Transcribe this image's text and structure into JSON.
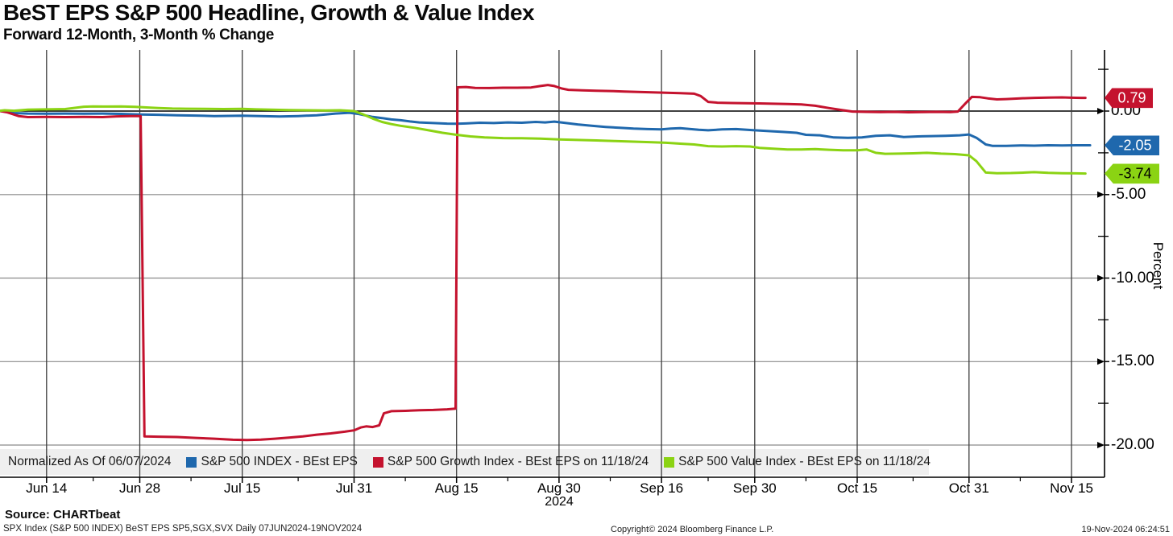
{
  "header": {
    "title": "BeST EPS S&P 500 Headline, Growth & Value Index",
    "subtitle": "Forward 12-Month, 3-Month % Change"
  },
  "chart_data": {
    "type": "line",
    "title": "BeST EPS S&P 500 Headline, Growth & Value Index",
    "subtitle": "Forward 12-Month, 3-Month % Change",
    "ylabel": "Percent",
    "legend_note": "Normalized As Of 06/07/2024",
    "x_axis": {
      "unit": "trading days since 07JUN2024",
      "year": "2024",
      "min_bd": 0,
      "max_bd": 118.5,
      "major_ticks": [
        {
          "bd": 5,
          "label": "Jun 14"
        },
        {
          "bd": 15,
          "label": "Jun 28"
        },
        {
          "bd": 26,
          "label": "Jul 15"
        },
        {
          "bd": 38,
          "label": "Jul 31"
        },
        {
          "bd": 49,
          "label": "Aug 15"
        },
        {
          "bd": 60,
          "label": "Aug 30"
        },
        {
          "bd": 71,
          "label": "Sep 16"
        },
        {
          "bd": 81,
          "label": "Sep 30"
        },
        {
          "bd": 92,
          "label": "Oct 15"
        },
        {
          "bd": 104,
          "label": "Oct 31"
        },
        {
          "bd": 115,
          "label": "Nov 15"
        }
      ]
    },
    "y_axis": {
      "range_top": 3.66,
      "range_bottom": -21.9,
      "major_ticks": [
        {
          "value": 0,
          "label": "0.00"
        },
        {
          "value": -5,
          "label": "-5.00"
        },
        {
          "value": -10,
          "label": "-10.00"
        },
        {
          "value": -15,
          "label": "-15.00"
        },
        {
          "value": -20,
          "label": "-20.00"
        }
      ],
      "minor_ticks": [
        2.5,
        -2.5,
        -7.5,
        -12.5,
        -17.5
      ],
      "grid": true
    },
    "style": {
      "zero_line_color": "#000000",
      "h_grid_color": "#8a8a8a",
      "v_grid_color": "#3c3c3c",
      "axis_color": "#000000",
      "legend_bg": "#efefef"
    },
    "series": [
      {
        "name": "S&P 500 INDEX - BEst EPS",
        "color": "#1f68ad",
        "last_value": -2.05,
        "last_label": "-2.05",
        "tag_text_color": "#ffffff",
        "points": [
          [
            0,
            0
          ],
          [
            0.5,
            -0.02
          ],
          [
            1.5,
            -0.12
          ],
          [
            3,
            -0.15
          ],
          [
            5,
            -0.16
          ],
          [
            7,
            -0.15
          ],
          [
            9,
            -0.16
          ],
          [
            11,
            -0.15
          ],
          [
            13,
            -0.17
          ],
          [
            15,
            -0.2
          ],
          [
            17,
            -0.22
          ],
          [
            19,
            -0.25
          ],
          [
            21,
            -0.27
          ],
          [
            23,
            -0.3
          ],
          [
            26,
            -0.28
          ],
          [
            28,
            -0.3
          ],
          [
            30,
            -0.33
          ],
          [
            32,
            -0.3
          ],
          [
            34,
            -0.25
          ],
          [
            36,
            -0.15
          ],
          [
            37.5,
            -0.1
          ],
          [
            38.5,
            -0.18
          ],
          [
            40,
            -0.35
          ],
          [
            41,
            -0.42
          ],
          [
            42,
            -0.5
          ],
          [
            43,
            -0.55
          ],
          [
            44,
            -0.62
          ],
          [
            45,
            -0.68
          ],
          [
            46.5,
            -0.72
          ],
          [
            48,
            -0.75
          ],
          [
            49,
            -0.76
          ],
          [
            50,
            -0.74
          ],
          [
            51.5,
            -0.7
          ],
          [
            53,
            -0.72
          ],
          [
            54.5,
            -0.68
          ],
          [
            56,
            -0.7
          ],
          [
            57.5,
            -0.65
          ],
          [
            58.5,
            -0.68
          ],
          [
            59.5,
            -0.63
          ],
          [
            60.5,
            -0.7
          ],
          [
            62,
            -0.8
          ],
          [
            63.5,
            -0.88
          ],
          [
            65,
            -0.95
          ],
          [
            66.5,
            -1.0
          ],
          [
            68,
            -1.05
          ],
          [
            69.5,
            -1.08
          ],
          [
            71,
            -1.1
          ],
          [
            72,
            -1.05
          ],
          [
            73,
            -1.02
          ],
          [
            74,
            -1.07
          ],
          [
            75,
            -1.12
          ],
          [
            76,
            -1.15
          ],
          [
            77.5,
            -1.1
          ],
          [
            79,
            -1.08
          ],
          [
            81,
            -1.15
          ],
          [
            82.5,
            -1.2
          ],
          [
            84,
            -1.25
          ],
          [
            85.5,
            -1.3
          ],
          [
            86.5,
            -1.42
          ],
          [
            88,
            -1.45
          ],
          [
            89.5,
            -1.58
          ],
          [
            91,
            -1.6
          ],
          [
            92.5,
            -1.58
          ],
          [
            94,
            -1.48
          ],
          [
            95.5,
            -1.45
          ],
          [
            97,
            -1.55
          ],
          [
            98.5,
            -1.52
          ],
          [
            100,
            -1.5
          ],
          [
            101.5,
            -1.48
          ],
          [
            103,
            -1.45
          ],
          [
            104,
            -1.4
          ],
          [
            104.8,
            -1.6
          ],
          [
            105.8,
            -2.0
          ],
          [
            106.5,
            -2.08
          ],
          [
            108,
            -2.08
          ],
          [
            109.5,
            -2.06
          ],
          [
            111,
            -2.07
          ],
          [
            112.5,
            -2.05
          ],
          [
            114,
            -2.06
          ],
          [
            115.5,
            -2.05
          ],
          [
            117,
            -2.05
          ]
        ]
      },
      {
        "name": "S&P 500 Growth Index - BEst EPS on 11/18/24",
        "color": "#c4122e",
        "last_value": 0.79,
        "last_label": "0.79",
        "tag_text_color": "#ffffff",
        "points": [
          [
            0,
            0
          ],
          [
            0.8,
            -0.08
          ],
          [
            2,
            -0.3
          ],
          [
            3,
            -0.36
          ],
          [
            5,
            -0.35
          ],
          [
            7,
            -0.36
          ],
          [
            9,
            -0.35
          ],
          [
            11,
            -0.36
          ],
          [
            12.5,
            -0.32
          ],
          [
            14,
            -0.3
          ],
          [
            15.1,
            -0.3
          ],
          [
            15.5,
            -19.48
          ],
          [
            17,
            -19.5
          ],
          [
            19,
            -19.52
          ],
          [
            21,
            -19.57
          ],
          [
            23,
            -19.62
          ],
          [
            25,
            -19.68
          ],
          [
            26.5,
            -19.7
          ],
          [
            28,
            -19.67
          ],
          [
            29.5,
            -19.62
          ],
          [
            31,
            -19.55
          ],
          [
            32.5,
            -19.48
          ],
          [
            34,
            -19.38
          ],
          [
            35.5,
            -19.3
          ],
          [
            37,
            -19.2
          ],
          [
            38,
            -19.12
          ],
          [
            38.7,
            -18.95
          ],
          [
            39.3,
            -18.88
          ],
          [
            40,
            -18.92
          ],
          [
            40.7,
            -18.82
          ],
          [
            41.2,
            -18.1
          ],
          [
            42,
            -17.97
          ],
          [
            43.5,
            -17.95
          ],
          [
            45,
            -17.92
          ],
          [
            46.5,
            -17.9
          ],
          [
            48,
            -17.86
          ],
          [
            48.9,
            -17.82
          ],
          [
            49.1,
            1.42
          ],
          [
            50,
            1.44
          ],
          [
            51,
            1.39
          ],
          [
            52.5,
            1.38
          ],
          [
            54,
            1.4
          ],
          [
            55.5,
            1.4
          ],
          [
            57,
            1.41
          ],
          [
            58,
            1.5
          ],
          [
            58.8,
            1.56
          ],
          [
            59.5,
            1.5
          ],
          [
            60.3,
            1.35
          ],
          [
            61,
            1.27
          ],
          [
            62.5,
            1.24
          ],
          [
            64,
            1.22
          ],
          [
            65.5,
            1.2
          ],
          [
            67,
            1.17
          ],
          [
            68.5,
            1.14
          ],
          [
            70,
            1.12
          ],
          [
            71.5,
            1.1
          ],
          [
            73,
            1.07
          ],
          [
            74.5,
            1.04
          ],
          [
            75.2,
            0.9
          ],
          [
            76,
            0.55
          ],
          [
            77,
            0.5
          ],
          [
            78.5,
            0.48
          ],
          [
            80,
            0.47
          ],
          [
            81.5,
            0.46
          ],
          [
            83,
            0.44
          ],
          [
            84.5,
            0.42
          ],
          [
            86,
            0.4
          ],
          [
            87.5,
            0.32
          ],
          [
            89,
            0.18
          ],
          [
            90.5,
            0.05
          ],
          [
            91.5,
            -0.03
          ],
          [
            93,
            -0.05
          ],
          [
            94.5,
            -0.06
          ],
          [
            96,
            -0.05
          ],
          [
            97.5,
            -0.07
          ],
          [
            99,
            -0.06
          ],
          [
            100.5,
            -0.05
          ],
          [
            102,
            -0.06
          ],
          [
            102.8,
            -0.03
          ],
          [
            103.6,
            0.45
          ],
          [
            104.3,
            0.85
          ],
          [
            105.2,
            0.83
          ],
          [
            106,
            0.76
          ],
          [
            107,
            0.7
          ],
          [
            108,
            0.72
          ],
          [
            109.5,
            0.76
          ],
          [
            111,
            0.79
          ],
          [
            112.5,
            0.81
          ],
          [
            114,
            0.82
          ],
          [
            115,
            0.8
          ],
          [
            116,
            0.79
          ],
          [
            116.5,
            0.79
          ]
        ]
      },
      {
        "name": "S&P 500 Value Index - BEst EPS on 11/18/24",
        "color": "#8bd313",
        "last_value": -3.74,
        "last_label": "-3.74",
        "tag_text_color": "#000000",
        "points": [
          [
            0,
            0.02
          ],
          [
            0.5,
            0.05
          ],
          [
            1.5,
            0.02
          ],
          [
            3,
            0.08
          ],
          [
            5,
            0.1
          ],
          [
            7,
            0.12
          ],
          [
            9,
            0.26
          ],
          [
            10,
            0.28
          ],
          [
            11.5,
            0.27
          ],
          [
            13,
            0.28
          ],
          [
            14.5,
            0.25
          ],
          [
            15.5,
            0.22
          ],
          [
            17,
            0.18
          ],
          [
            18.5,
            0.15
          ],
          [
            20,
            0.14
          ],
          [
            22,
            0.13
          ],
          [
            24,
            0.12
          ],
          [
            26,
            0.13
          ],
          [
            27.5,
            0.1
          ],
          [
            29,
            0.08
          ],
          [
            31,
            0.06
          ],
          [
            33,
            0.05
          ],
          [
            35,
            0.04
          ],
          [
            36.5,
            0.05
          ],
          [
            38,
            0.0
          ],
          [
            39,
            -0.2
          ],
          [
            40,
            -0.45
          ],
          [
            41,
            -0.65
          ],
          [
            42,
            -0.78
          ],
          [
            43,
            -0.88
          ],
          [
            44.5,
            -1.0
          ],
          [
            46,
            -1.15
          ],
          [
            47.5,
            -1.3
          ],
          [
            49,
            -1.42
          ],
          [
            50.5,
            -1.52
          ],
          [
            52,
            -1.58
          ],
          [
            54,
            -1.62
          ],
          [
            56,
            -1.63
          ],
          [
            58,
            -1.65
          ],
          [
            60,
            -1.7
          ],
          [
            62,
            -1.73
          ],
          [
            64,
            -1.76
          ],
          [
            66,
            -1.8
          ],
          [
            68,
            -1.83
          ],
          [
            70,
            -1.87
          ],
          [
            71.5,
            -1.9
          ],
          [
            73,
            -1.95
          ],
          [
            74.5,
            -2.0
          ],
          [
            76,
            -2.1
          ],
          [
            77.5,
            -2.12
          ],
          [
            79,
            -2.1
          ],
          [
            80.5,
            -2.12
          ],
          [
            81.5,
            -2.2
          ],
          [
            83,
            -2.25
          ],
          [
            84.5,
            -2.3
          ],
          [
            86,
            -2.3
          ],
          [
            87.5,
            -2.28
          ],
          [
            89,
            -2.32
          ],
          [
            90.5,
            -2.35
          ],
          [
            92,
            -2.35
          ],
          [
            93,
            -2.3
          ],
          [
            94,
            -2.5
          ],
          [
            95,
            -2.56
          ],
          [
            96.5,
            -2.55
          ],
          [
            98,
            -2.53
          ],
          [
            99.5,
            -2.5
          ],
          [
            101,
            -2.55
          ],
          [
            102.5,
            -2.58
          ],
          [
            104,
            -2.65
          ],
          [
            104.8,
            -3.0
          ],
          [
            105.8,
            -3.68
          ],
          [
            107,
            -3.72
          ],
          [
            108.5,
            -3.71
          ],
          [
            110,
            -3.68
          ],
          [
            111,
            -3.66
          ],
          [
            112.5,
            -3.7
          ],
          [
            114,
            -3.72
          ],
          [
            115.5,
            -3.73
          ],
          [
            116.5,
            -3.74
          ]
        ]
      }
    ]
  },
  "footer": {
    "source": "Source: CHARTbeat",
    "meta": "SPX Index (S&P 500 INDEX) BeST EPS SP5,SGX,SVX  Daily 07JUN2024-19NOV2024",
    "copyright": "Copyright© 2024 Bloomberg Finance L.P.",
    "timestamp": "19-Nov-2024 06:24:51"
  }
}
